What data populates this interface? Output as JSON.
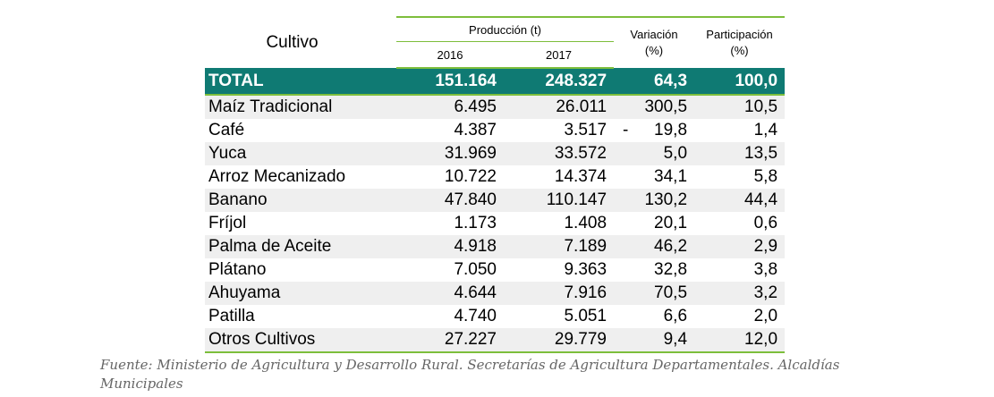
{
  "header": {
    "cultivo": "Cultivo",
    "produccion": "Producción (t)",
    "year1": "2016",
    "year2": "2017",
    "variacion": "Variación",
    "variacion_unit": "(%)",
    "participacion": "Participación",
    "participacion_unit": "(%)"
  },
  "total": {
    "label": "TOTAL",
    "y2016": "151.164",
    "y2017": "248.327",
    "variacion": "64,3",
    "participacion": "100,0"
  },
  "rows": [
    {
      "cultivo": "Maíz Tradicional",
      "y2016": "6.495",
      "y2017": "26.011",
      "variacion_sign": "",
      "variacion": "300,5",
      "participacion": "10,5"
    },
    {
      "cultivo": "Café",
      "y2016": "4.387",
      "y2017": "3.517",
      "variacion_sign": "-",
      "variacion": "19,8",
      "participacion": "1,4"
    },
    {
      "cultivo": "Yuca",
      "y2016": "31.969",
      "y2017": "33.572",
      "variacion_sign": "",
      "variacion": "5,0",
      "participacion": "13,5"
    },
    {
      "cultivo": "Arroz Mecanizado",
      "y2016": "10.722",
      "y2017": "14.374",
      "variacion_sign": "",
      "variacion": "34,1",
      "participacion": "5,8"
    },
    {
      "cultivo": "Banano",
      "y2016": "47.840",
      "y2017": "110.147",
      "variacion_sign": "",
      "variacion": "130,2",
      "participacion": "44,4"
    },
    {
      "cultivo": "Fríjol",
      "y2016": "1.173",
      "y2017": "1.408",
      "variacion_sign": "",
      "variacion": "20,1",
      "participacion": "0,6"
    },
    {
      "cultivo": "Palma de Aceite",
      "y2016": "4.918",
      "y2017": "7.189",
      "variacion_sign": "",
      "variacion": "46,2",
      "participacion": "2,9"
    },
    {
      "cultivo": "Plátano",
      "y2016": "7.050",
      "y2017": "9.363",
      "variacion_sign": "",
      "variacion": "32,8",
      "participacion": "3,8"
    },
    {
      "cultivo": "Ahuyama",
      "y2016": "4.644",
      "y2017": "7.916",
      "variacion_sign": "",
      "variacion": "70,5",
      "participacion": "3,2"
    },
    {
      "cultivo": "Patilla",
      "y2016": "4.740",
      "y2017": "5.051",
      "variacion_sign": "",
      "variacion": "6,6",
      "participacion": "2,0"
    },
    {
      "cultivo": "Otros Cultivos",
      "y2016": "27.227",
      "y2017": "29.779",
      "variacion_sign": "",
      "variacion": "9,4",
      "participacion": "12,0"
    }
  ],
  "source_note": "Fuente: Ministerio de Agricultura y Desarrollo Rural. Secretarías de Agricultura Departamentales. Alcaldías Municipales",
  "colors": {
    "total_bg": "#0f7a73",
    "rule": "#7dbe3c",
    "stripe": "#efefef",
    "note": "#666666"
  }
}
